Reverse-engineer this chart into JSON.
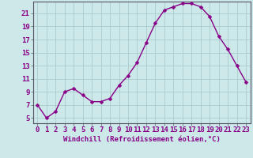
{
  "x": [
    0,
    1,
    2,
    3,
    4,
    5,
    6,
    7,
    8,
    9,
    10,
    11,
    12,
    13,
    14,
    15,
    16,
    17,
    18,
    19,
    20,
    21,
    22,
    23
  ],
  "y": [
    7,
    5,
    6,
    9,
    9.5,
    8.5,
    7.5,
    7.5,
    8,
    10,
    11.5,
    13.5,
    16.5,
    19.5,
    21.5,
    22,
    22.5,
    22.5,
    22,
    20.5,
    17.5,
    15.5,
    13,
    10.5
  ],
  "line_color": "#880088",
  "marker": "D",
  "markersize": 2.5,
  "linewidth": 1.0,
  "bg_color": "#cce8e8",
  "grid_color": "#aacccc",
  "xlabel": "Windchill (Refroidissement éolien,°C)",
  "xlabel_fontsize": 6.5,
  "ytick_labels": [
    5,
    7,
    9,
    11,
    13,
    15,
    17,
    19,
    21
  ],
  "ylim": [
    4.2,
    22.8
  ],
  "xlim": [
    -0.5,
    23.5
  ],
  "tick_fontsize": 6.5,
  "label_color": "#880088",
  "axis_color": "#666666",
  "xlabel_color": "#880088"
}
